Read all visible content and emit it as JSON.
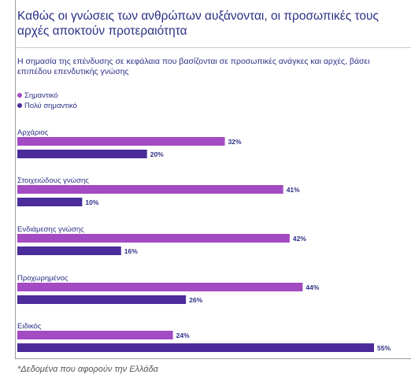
{
  "title": "Καθώς οι γνώσεις των ανθρώπων αυξάνονται, οι προσωπικές τους αρχές αποκτούν προτεραιότητα",
  "subtitle": "Η σημασία της επένδυσης σε κεφάλαια που βασίζονται σε προσωπικές ανάγκες και αρχές, βάσει επιπέδου επενδυτικής γνώσης",
  "footnote": "*Δεδομένα που αφορούν την Ελλάδα",
  "colors": {
    "important": "#a24bc2",
    "very_important": "#4b2c9a",
    "text": "#2d2f86"
  },
  "chart_data": {
    "type": "bar",
    "orientation": "horizontal",
    "categories": [
      "Αρχάριος",
      "Στοιχειώδους γνώσης",
      "Ενδιάμεσης γνώσης",
      "Προχωρημένος",
      "Ειδικός"
    ],
    "series": [
      {
        "name": "Σημαντικό",
        "values": [
          32,
          41,
          42,
          44,
          24
        ],
        "color": "#a24bc2"
      },
      {
        "name": "Πολύ σημαντικό",
        "values": [
          20,
          10,
          16,
          26,
          55
        ],
        "color": "#4b2c9a"
      }
    ],
    "value_suffix": "%",
    "xlim": [
      0,
      55
    ],
    "legend": "top-left",
    "grid": false
  }
}
